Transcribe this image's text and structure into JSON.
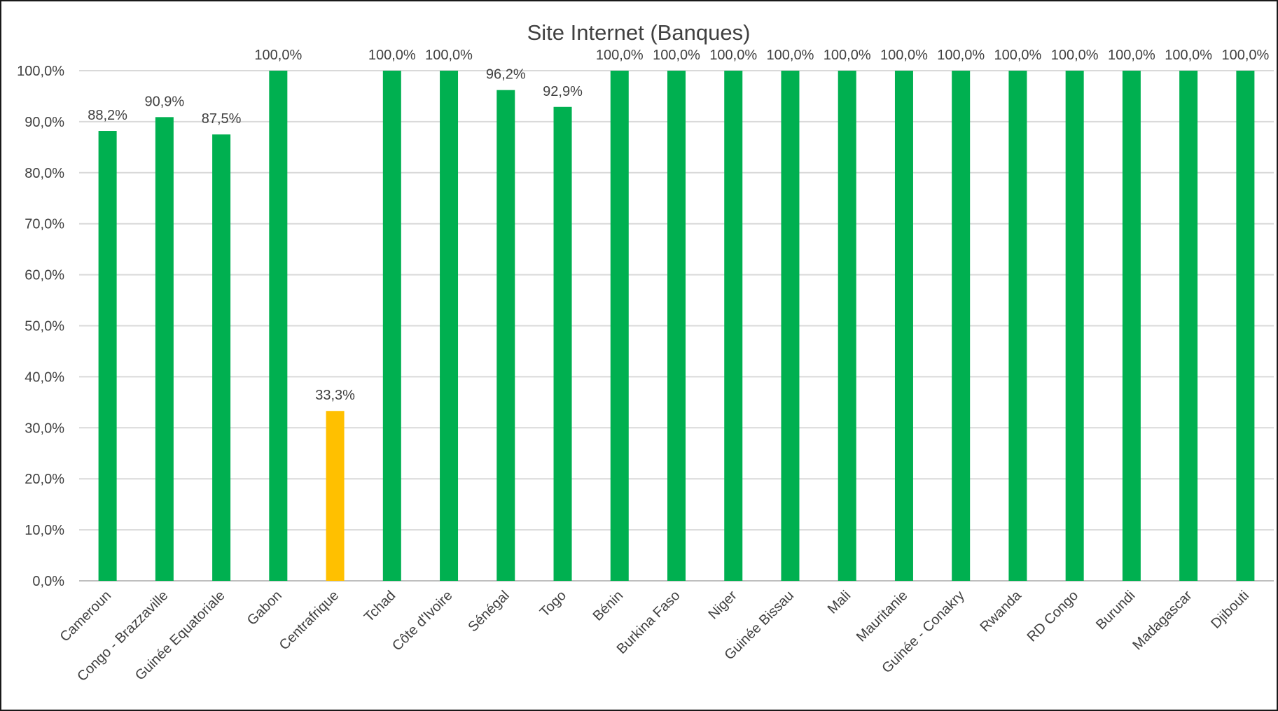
{
  "chart_data": {
    "type": "bar",
    "title": "Site Internet (Banques)",
    "xlabel": "",
    "ylabel": "",
    "ylim": [
      0,
      100
    ],
    "yticks": [
      "0,0%",
      "10,0%",
      "20,0%",
      "30,0%",
      "40,0%",
      "50,0%",
      "60,0%",
      "70,0%",
      "80,0%",
      "90,0%",
      "100,0%"
    ],
    "grid": true,
    "legend": "none",
    "categories": [
      "Cameroun",
      "Congo - Brazzaville",
      "Guinée Equatoriale",
      "Gabon",
      "Centrafrique",
      "Tchad",
      "Côte d'Ivoire",
      "Sénégal",
      "Togo",
      "Bénin",
      "Burkina Faso",
      "Niger",
      "Guinée Bissau",
      "Mali",
      "Mauritanie",
      "Guinée - Conakry",
      "Rwanda",
      "RD Congo",
      "Burundi",
      "Madagascar",
      "Djibouti"
    ],
    "values": [
      88.2,
      90.9,
      87.5,
      100,
      33.3,
      100,
      100,
      96.2,
      92.9,
      100,
      100,
      100,
      100,
      100,
      100,
      100,
      100,
      100,
      100,
      100,
      100
    ],
    "labels": [
      "88,2%",
      "90,9%",
      "87,5%",
      "100,0%",
      "33,3%",
      "100,0%",
      "100,0%",
      "96,2%",
      "92,9%",
      "100,0%",
      "100,0%",
      "100,0%",
      "100,0%",
      "100,0%",
      "100,0%",
      "100,0%",
      "100,0%",
      "100,0%",
      "100,0%",
      "100,0%",
      "100,0%"
    ],
    "colors": {
      "default": "#00b050",
      "highlight": "#ffc000",
      "highlight_categories": [
        "Centrafrique"
      ]
    }
  }
}
